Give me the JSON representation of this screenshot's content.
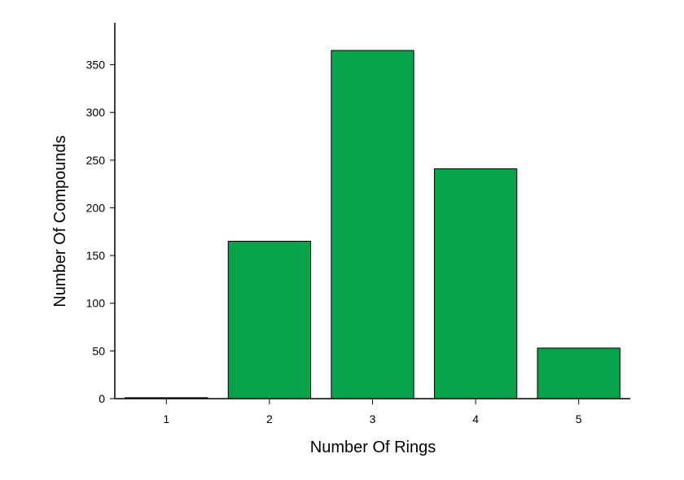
{
  "chart_data": {
    "type": "bar",
    "x_label": "Number Of Rings",
    "y_label": "Number Of Compounds",
    "categories": [
      "1",
      "2",
      "3",
      "4",
      "5"
    ],
    "values": [
      1,
      165,
      365,
      241,
      53
    ],
    "color": "#08a24b",
    "ylim": [
      0,
      394
    ],
    "yticks": [
      0,
      50,
      100,
      150,
      200,
      250,
      300,
      350
    ],
    "grid": false
  }
}
